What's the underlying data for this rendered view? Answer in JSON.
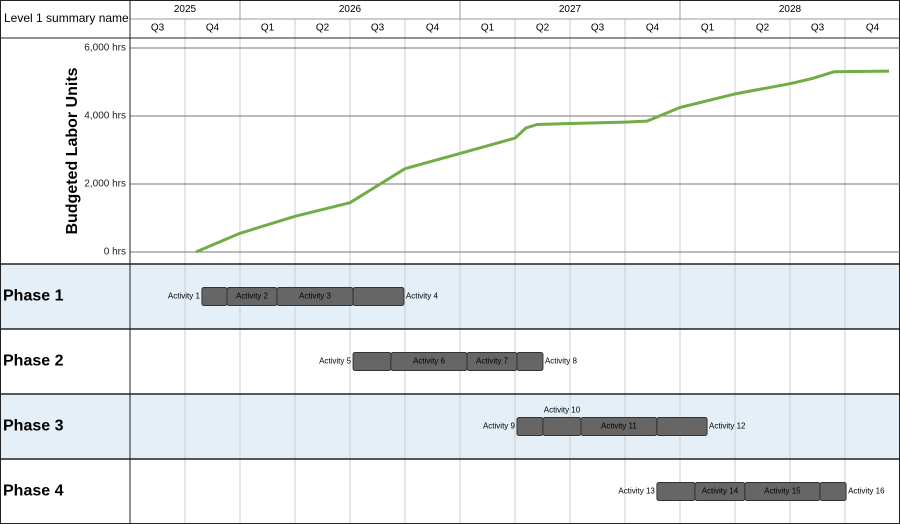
{
  "header": {
    "label": "Level 1 summary name"
  },
  "chart_data": {
    "type": "line",
    "y_label": "Budgeted Labor Units",
    "xlim": [
      2025.5,
      2029
    ],
    "ylim": [
      0,
      6000
    ],
    "yticks": [
      {
        "value": 0,
        "label": "0 hrs"
      },
      {
        "value": 2000,
        "label": "2,000 hrs"
      },
      {
        "value": 4000,
        "label": "4,000 hrs"
      },
      {
        "value": 6000,
        "label": "6,000 hrs"
      }
    ],
    "grid": true,
    "x": [
      2025.8,
      2026.0,
      2026.25,
      2026.5,
      2026.75,
      2027.0,
      2027.25,
      2027.3,
      2027.35,
      2027.5,
      2027.75,
      2027.85,
      2028.0,
      2028.25,
      2028.5,
      2028.6,
      2028.7,
      2028.95
    ],
    "series": [
      {
        "color": "#70ad47",
        "values": [
          0,
          550,
          1050,
          1450,
          2450,
          2900,
          3350,
          3650,
          3750,
          3780,
          3820,
          3850,
          4250,
          4650,
          4950,
          5100,
          5300,
          5320
        ]
      }
    ],
    "timeline": {
      "years": [
        {
          "label": "2025",
          "start": 2025.5,
          "end": 2026
        },
        {
          "label": "2026",
          "start": 2026,
          "end": 2027
        },
        {
          "label": "2027",
          "start": 2027,
          "end": 2028
        },
        {
          "label": "2028",
          "start": 2028,
          "end": 2029
        }
      ],
      "quarters": [
        {
          "label": "Q3",
          "start": 2025.5,
          "end": 2025.75
        },
        {
          "label": "Q4",
          "start": 2025.75,
          "end": 2026
        },
        {
          "label": "Q1",
          "start": 2026,
          "end": 2026.25
        },
        {
          "label": "Q2",
          "start": 2026.25,
          "end": 2026.5
        },
        {
          "label": "Q3",
          "start": 2026.5,
          "end": 2026.75
        },
        {
          "label": "Q4",
          "start": 2026.75,
          "end": 2027
        },
        {
          "label": "Q1",
          "start": 2027,
          "end": 2027.25
        },
        {
          "label": "Q2",
          "start": 2027.25,
          "end": 2027.5
        },
        {
          "label": "Q3",
          "start": 2027.5,
          "end": 2027.75
        },
        {
          "label": "Q4",
          "start": 2027.75,
          "end": 2028
        },
        {
          "label": "Q1",
          "start": 2028,
          "end": 2028.25
        },
        {
          "label": "Q2",
          "start": 2028.25,
          "end": 2028.5
        },
        {
          "label": "Q3",
          "start": 2028.5,
          "end": 2028.75
        },
        {
          "label": "Q4",
          "start": 2028.75,
          "end": 2029
        }
      ]
    },
    "bar_color": "#666666",
    "phases": [
      {
        "name": "Phase 1",
        "shaded": true,
        "activities": [
          {
            "name": "Activity 1",
            "start": 2025.827,
            "end": 2025.941,
            "label_position": "left"
          },
          {
            "name": "Activity 2",
            "start": 2025.941,
            "end": 2026.168,
            "label_position": "inside"
          },
          {
            "name": "Activity 3",
            "start": 2026.168,
            "end": 2026.514,
            "label_position": "inside"
          },
          {
            "name": "Activity 4",
            "start": 2026.514,
            "end": 2026.745,
            "label_position": "right"
          }
        ]
      },
      {
        "name": "Phase 2",
        "shaded": false,
        "activities": [
          {
            "name": "Activity 5",
            "start": 2026.514,
            "end": 2026.686,
            "label_position": "left"
          },
          {
            "name": "Activity 6",
            "start": 2026.686,
            "end": 2027.032,
            "label_position": "inside"
          },
          {
            "name": "Activity 7",
            "start": 2027.032,
            "end": 2027.259,
            "label_position": "inside"
          },
          {
            "name": "Activity 8",
            "start": 2027.259,
            "end": 2027.377,
            "label_position": "right"
          }
        ]
      },
      {
        "name": "Phase 3",
        "shaded": true,
        "activities": [
          {
            "name": "Activity 9",
            "start": 2027.259,
            "end": 2027.377,
            "label_position": "left"
          },
          {
            "name": "Activity 10",
            "start": 2027.377,
            "end": 2027.55,
            "label_position": "above"
          },
          {
            "name": "Activity 11",
            "start": 2027.55,
            "end": 2027.895,
            "label_position": "inside"
          },
          {
            "name": "Activity 12",
            "start": 2027.895,
            "end": 2028.123,
            "label_position": "right"
          }
        ]
      },
      {
        "name": "Phase 4",
        "shaded": false,
        "activities": [
          {
            "name": "Activity 13",
            "start": 2027.895,
            "end": 2028.068,
            "label_position": "left"
          },
          {
            "name": "Activity 14",
            "start": 2028.068,
            "end": 2028.295,
            "label_position": "inside"
          },
          {
            "name": "Activity 15",
            "start": 2028.295,
            "end": 2028.636,
            "label_position": "inside"
          },
          {
            "name": "Activity 16",
            "start": 2028.636,
            "end": 2028.755,
            "label_position": "right"
          }
        ]
      }
    ]
  }
}
